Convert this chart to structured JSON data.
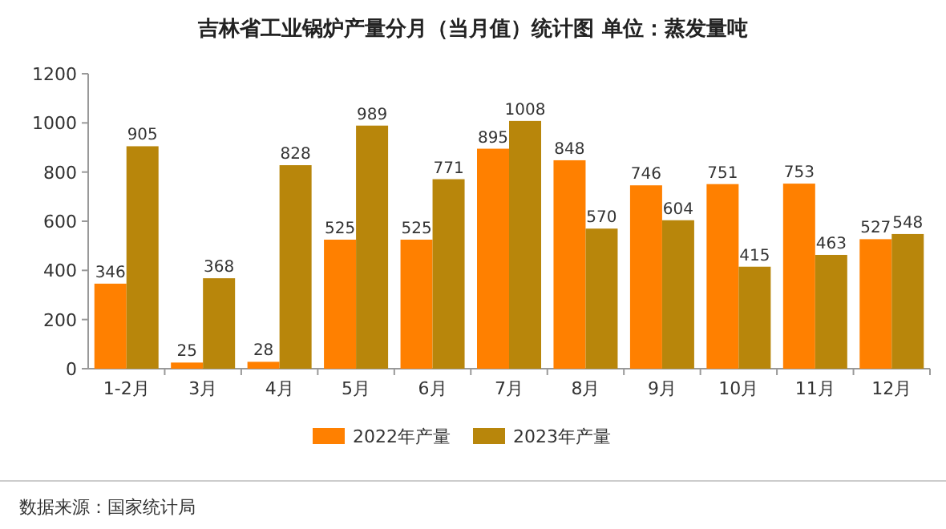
{
  "chart_data": {
    "type": "bar",
    "title": "吉林省工业锅炉产量分月（当月值）统计图 单位：蒸发量吨",
    "categories": [
      "1-2月",
      "3月",
      "4月",
      "5月",
      "6月",
      "7月",
      "8月",
      "9月",
      "10月",
      "11月",
      "12月"
    ],
    "series": [
      {
        "name": "2022年产量",
        "color": "#ff8000",
        "values": [
          346,
          25,
          28,
          525,
          525,
          895,
          848,
          746,
          751,
          753,
          527
        ]
      },
      {
        "name": "2023年产量",
        "color": "#b8860b",
        "values": [
          905,
          368,
          828,
          989,
          771,
          1008,
          570,
          604,
          415,
          463,
          548
        ]
      }
    ],
    "ylim": [
      0,
      1200
    ],
    "yticks": [
      0,
      200,
      400,
      600,
      800,
      1000,
      1200
    ],
    "grid": false,
    "legend": "bottom",
    "data_labels": true,
    "annotations": [
      "数据来源：国家统计局"
    ]
  }
}
